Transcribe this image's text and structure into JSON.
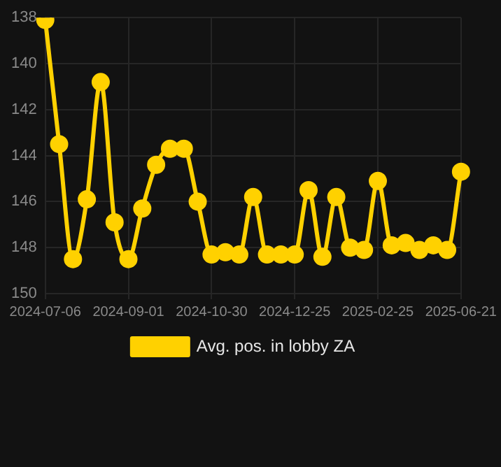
{
  "chart_data": {
    "type": "line",
    "categories": [
      "2024-07-06",
      null,
      null,
      null,
      null,
      null,
      "2024-09-01",
      null,
      null,
      null,
      null,
      null,
      "2024-10-30",
      null,
      null,
      null,
      null,
      null,
      "2024-12-25",
      null,
      null,
      null,
      null,
      null,
      "2025-02-25",
      null,
      null,
      null,
      null,
      null,
      "2025-06-21"
    ],
    "series": [
      {
        "name": "Avg. pos. in lobby ZA",
        "color": "#ffd100",
        "values": [
          138.1,
          143.5,
          148.5,
          145.9,
          140.8,
          146.9,
          148.5,
          146.3,
          144.4,
          143.7,
          143.7,
          146.0,
          148.3,
          148.2,
          148.3,
          145.8,
          148.3,
          148.3,
          148.3,
          145.5,
          148.4,
          145.8,
          148.0,
          148.1,
          145.1,
          147.9,
          147.8,
          148.1,
          147.9,
          148.1,
          144.7
        ]
      }
    ],
    "ylim": [
      150,
      138
    ],
    "yticks": [
      138,
      140,
      142,
      144,
      146,
      148,
      150
    ],
    "grid": true,
    "legend": "bottom",
    "marker": "circle",
    "line_style": "solid"
  }
}
